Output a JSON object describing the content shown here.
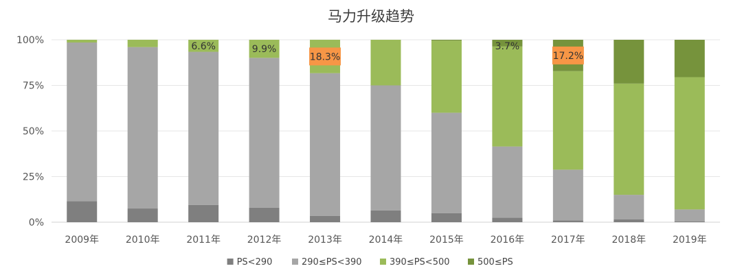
{
  "chart_data": {
    "type": "bar",
    "stacked": true,
    "percent": true,
    "title": "马力升级趋势",
    "categories": [
      "2009年",
      "2010年",
      "2011年",
      "2012年",
      "2013年",
      "2014年",
      "2015年",
      "2016年",
      "2017年",
      "2018年",
      "2019年"
    ],
    "series": [
      {
        "name": "PS<290",
        "color": "#7f7f7f",
        "values": [
          11.5,
          7.5,
          9.5,
          8.0,
          3.5,
          6.5,
          5.0,
          2.5,
          1.0,
          1.5,
          0.5
        ]
      },
      {
        "name": "290≤PS<390",
        "color": "#a6a6a6",
        "values": [
          87.0,
          88.5,
          83.9,
          82.1,
          78.2,
          68.5,
          55.0,
          39.0,
          27.8,
          13.5,
          6.5
        ]
      },
      {
        "name": "390≤PS<500",
        "color": "#9bbb59",
        "values": [
          1.5,
          4.0,
          6.6,
          9.9,
          18.3,
          25.0,
          39.5,
          54.8,
          54.0,
          61.0,
          72.5
        ]
      },
      {
        "name": "500≤PS",
        "color": "#76933c",
        "values": [
          0,
          0,
          0,
          0,
          0,
          0,
          0.5,
          3.7,
          17.2,
          24.0,
          20.5
        ]
      }
    ],
    "ylim": [
      0,
      100
    ],
    "yticks": [
      "0%",
      "25%",
      "50%",
      "75%",
      "100%"
    ],
    "legend_position": "bottom",
    "grid": true,
    "data_labels": [
      {
        "category": "2011年",
        "series": "390≤PS<500",
        "text": "6.6%",
        "highlight": false
      },
      {
        "category": "2012年",
        "series": "390≤PS<500",
        "text": "9.9%",
        "highlight": false
      },
      {
        "category": "2013年",
        "series": "390≤PS<500",
        "text": "18.3%",
        "highlight": true
      },
      {
        "category": "2016年",
        "series": "500≤PS",
        "text": "3.7%",
        "highlight": false
      },
      {
        "category": "2017年",
        "series": "500≤PS",
        "text": "17.2%",
        "highlight": true
      }
    ],
    "highlight_color": "#f79646"
  }
}
